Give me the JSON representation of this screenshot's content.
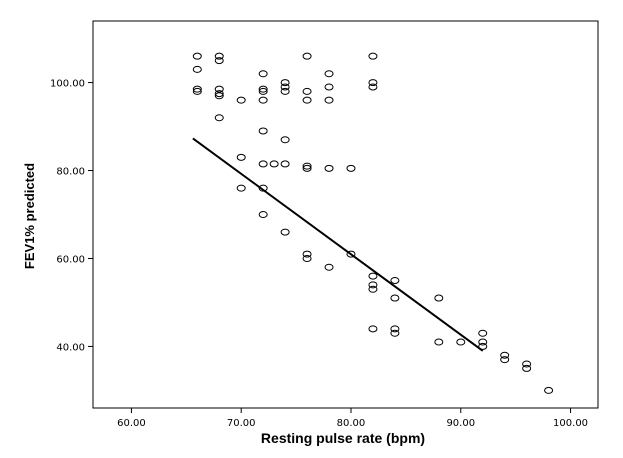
{
  "chart_data": {
    "type": "scatter",
    "xlabel": "Resting pulse rate (bpm)",
    "ylabel": "FEV1% predicted",
    "xlim": [
      56.5,
      102.5
    ],
    "ylim": [
      26,
      114
    ],
    "x_ticks": [
      "60.00",
      "70.00",
      "80.00",
      "90.00",
      "100.00"
    ],
    "y_ticks": [
      "40.00",
      "60.00",
      "80.00",
      "100.00"
    ],
    "grid": false,
    "legend": "none",
    "points": [
      {
        "x": 66,
        "y": 106
      },
      {
        "x": 66,
        "y": 103
      },
      {
        "x": 66,
        "y": 98.5
      },
      {
        "x": 66,
        "y": 98
      },
      {
        "x": 68,
        "y": 106
      },
      {
        "x": 68,
        "y": 105
      },
      {
        "x": 68,
        "y": 98.5
      },
      {
        "x": 68,
        "y": 97.5
      },
      {
        "x": 68,
        "y": 97
      },
      {
        "x": 68,
        "y": 92
      },
      {
        "x": 70,
        "y": 96
      },
      {
        "x": 70,
        "y": 83
      },
      {
        "x": 70,
        "y": 76
      },
      {
        "x": 72,
        "y": 102
      },
      {
        "x": 72,
        "y": 98.5
      },
      {
        "x": 72,
        "y": 98
      },
      {
        "x": 72,
        "y": 96
      },
      {
        "x": 72,
        "y": 89
      },
      {
        "x": 72,
        "y": 81.5
      },
      {
        "x": 72,
        "y": 76
      },
      {
        "x": 72,
        "y": 70
      },
      {
        "x": 73,
        "y": 81.5
      },
      {
        "x": 74,
        "y": 100
      },
      {
        "x": 74,
        "y": 99
      },
      {
        "x": 74,
        "y": 98
      },
      {
        "x": 74,
        "y": 87
      },
      {
        "x": 74,
        "y": 81.5
      },
      {
        "x": 74,
        "y": 66
      },
      {
        "x": 76,
        "y": 106
      },
      {
        "x": 76,
        "y": 98
      },
      {
        "x": 76,
        "y": 96
      },
      {
        "x": 76,
        "y": 81
      },
      {
        "x": 76,
        "y": 80.5
      },
      {
        "x": 76,
        "y": 61
      },
      {
        "x": 76,
        "y": 60
      },
      {
        "x": 78,
        "y": 102
      },
      {
        "x": 78,
        "y": 99
      },
      {
        "x": 78,
        "y": 96
      },
      {
        "x": 78,
        "y": 80.5
      },
      {
        "x": 78,
        "y": 58
      },
      {
        "x": 80,
        "y": 80.5
      },
      {
        "x": 80,
        "y": 61
      },
      {
        "x": 82,
        "y": 106
      },
      {
        "x": 82,
        "y": 100
      },
      {
        "x": 82,
        "y": 99
      },
      {
        "x": 82,
        "y": 56
      },
      {
        "x": 82,
        "y": 54
      },
      {
        "x": 82,
        "y": 53
      },
      {
        "x": 82,
        "y": 44
      },
      {
        "x": 84,
        "y": 55
      },
      {
        "x": 84,
        "y": 51
      },
      {
        "x": 84,
        "y": 44
      },
      {
        "x": 84,
        "y": 43
      },
      {
        "x": 88,
        "y": 51
      },
      {
        "x": 88,
        "y": 41
      },
      {
        "x": 90,
        "y": 41
      },
      {
        "x": 92,
        "y": 43
      },
      {
        "x": 92,
        "y": 41
      },
      {
        "x": 92,
        "y": 40
      },
      {
        "x": 94,
        "y": 38
      },
      {
        "x": 94,
        "y": 37
      },
      {
        "x": 96,
        "y": 36
      },
      {
        "x": 96,
        "y": 35
      },
      {
        "x": 98,
        "y": 30
      }
    ],
    "fit_line": {
      "x": [
        65.6,
        92
      ],
      "y": [
        87.3,
        39
      ]
    }
  }
}
